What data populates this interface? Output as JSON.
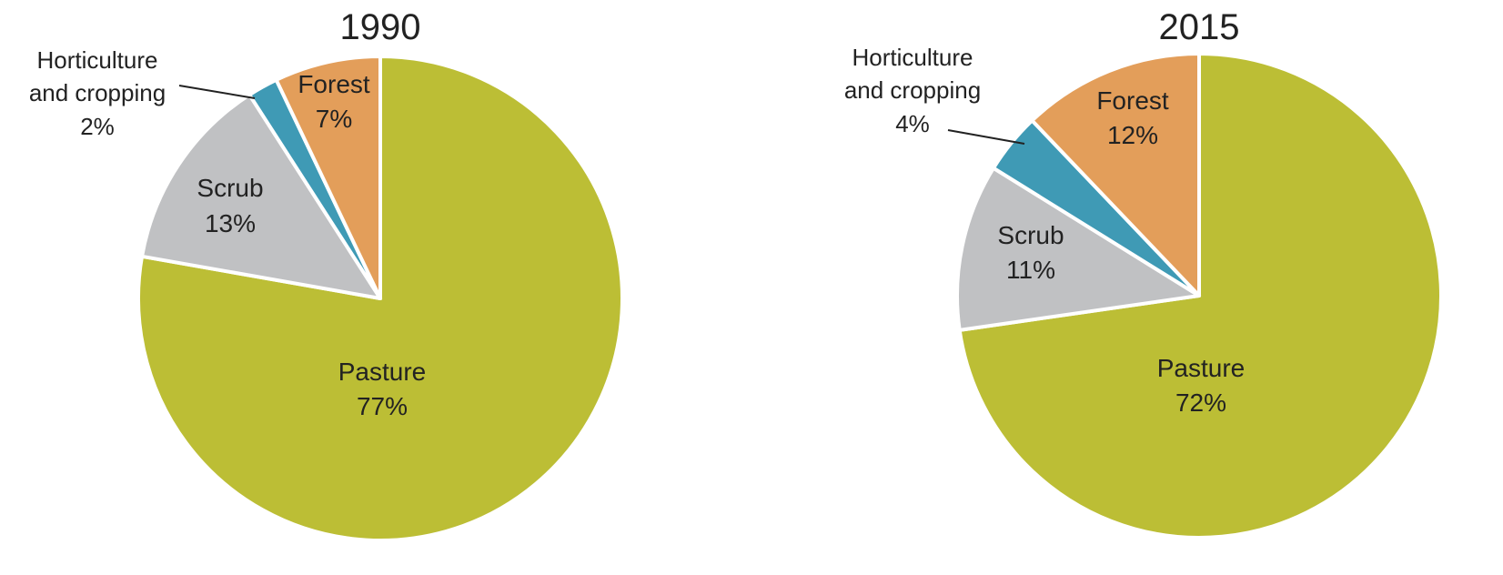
{
  "chart_data": [
    {
      "type": "pie",
      "title": "1990",
      "slices": [
        {
          "label": "Pasture",
          "value": 77,
          "display": "77%",
          "color": "#bcbe35"
        },
        {
          "label": "Scrub",
          "value": 13,
          "display": "13%",
          "color": "#c0c1c3"
        },
        {
          "label": "Horticulture and cropping",
          "value": 2,
          "display": "2%",
          "color": "#3f9ab5"
        },
        {
          "label": "Forest",
          "value": 7,
          "display": "7%",
          "color": "#e39e5a"
        }
      ]
    },
    {
      "type": "pie",
      "title": "2015",
      "slices": [
        {
          "label": "Pasture",
          "value": 72,
          "display": "72%",
          "color": "#bcbe35"
        },
        {
          "label": "Scrub",
          "value": 11,
          "display": "11%",
          "color": "#c0c1c3"
        },
        {
          "label": "Horticulture and cropping",
          "value": 4,
          "display": "4%",
          "color": "#3f9ab5"
        },
        {
          "label": "Forest",
          "value": 12,
          "display": "12%",
          "color": "#e39e5a"
        }
      ]
    }
  ]
}
